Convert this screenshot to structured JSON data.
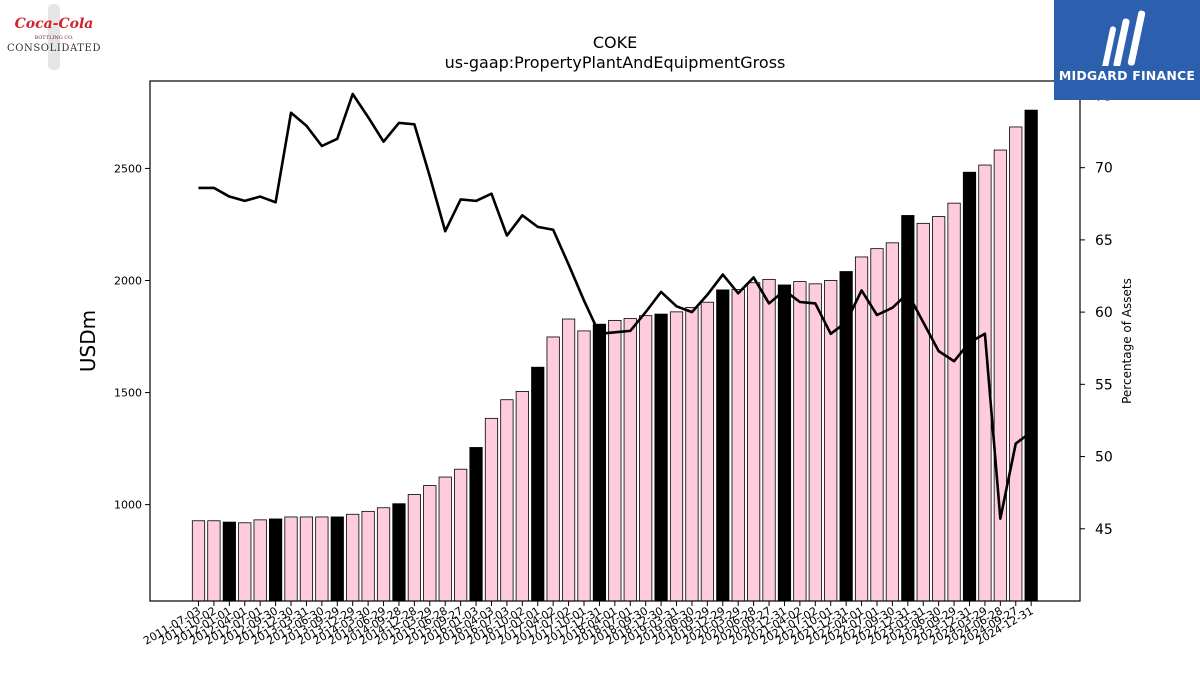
{
  "header": {
    "ticker": "COKE",
    "metric": "us-gaap:PropertyPlantAndEquipmentGross"
  },
  "logos": {
    "left": {
      "line1": "Coca-Cola",
      "line2": "BOTTLING CO.",
      "line3": "CONSOLIDATED"
    },
    "right": {
      "text": "MIDGARD FINANCE",
      "color": "#2c5fae"
    }
  },
  "chart_data": {
    "type": "bar",
    "title": "COKE",
    "subtitle": "us-gaap:PropertyPlantAndEquipmentGross",
    "ylabel": "USDm",
    "y2label": "Percentage of Assets",
    "ylim": [
      570,
      2890
    ],
    "y2lim": [
      40,
      76
    ],
    "yticks": [
      1000,
      1500,
      2000,
      2500
    ],
    "y2ticks": [
      45,
      50,
      55,
      60,
      65,
      70,
      75
    ],
    "colors": {
      "bar": "#ffccdd",
      "bar_highlight": "#000000",
      "line": "#000000"
    },
    "categories": [
      "2011-07-03",
      "2011-10-02",
      "2012-01-01",
      "2012-04-01",
      "2012-07-01",
      "2012-09-30",
      "2012-12-30",
      "2013-03-31",
      "2013-06-30",
      "2013-09-29",
      "2013-12-29",
      "2014-03-30",
      "2014-06-29",
      "2014-09-28",
      "2014-12-28",
      "2015-03-29",
      "2015-06-28",
      "2015-09-27",
      "2016-01-03",
      "2016-04-03",
      "2016-07-03",
      "2016-10-02",
      "2017-01-01",
      "2017-04-02",
      "2017-07-02",
      "2017-10-01",
      "2017-12-31",
      "2018-04-01",
      "2018-07-01",
      "2018-09-30",
      "2018-12-30",
      "2019-03-31",
      "2019-06-30",
      "2019-09-29",
      "2019-12-29",
      "2020-03-29",
      "2020-06-28",
      "2020-09-27",
      "2020-12-31",
      "2021-04-02",
      "2021-07-02",
      "2021-10-01",
      "2021-12-31",
      "2022-04-01",
      "2022-07-01",
      "2022-09-30",
      "2022-12-31",
      "2023-03-31",
      "2023-06-30",
      "2023-09-29",
      "2023-12-31",
      "2024-03-29",
      "2024-06-28",
      "2024-09-27",
      "2024-12-31"
    ],
    "series": [
      {
        "kind": "bar",
        "values": [
          928,
          928,
          922,
          919,
          932,
          936,
          945,
          945,
          945,
          945,
          957,
          970,
          986,
          1004,
          1045,
          1085,
          1123,
          1158,
          1255,
          1385,
          1468,
          1505,
          1613,
          1748,
          1828,
          1775,
          1805,
          1822,
          1830,
          1843,
          1850,
          1860,
          1880,
          1903,
          1958,
          1960,
          1990,
          2005,
          1980,
          1995,
          1985,
          2000,
          2040,
          2105,
          2142,
          2168,
          2290,
          2255,
          2285,
          2345,
          2483,
          2515,
          2582,
          2685,
          2760
        ],
        "highlight": [
          false,
          false,
          true,
          false,
          false,
          true,
          false,
          false,
          false,
          true,
          false,
          false,
          false,
          true,
          false,
          false,
          false,
          false,
          true,
          false,
          false,
          false,
          true,
          false,
          false,
          false,
          true,
          false,
          false,
          false,
          true,
          false,
          false,
          false,
          true,
          false,
          false,
          false,
          true,
          false,
          false,
          false,
          true,
          false,
          false,
          false,
          true,
          false,
          false,
          false,
          true,
          false,
          false,
          false,
          true
        ]
      },
      {
        "kind": "line",
        "axis": "right",
        "values": [
          68.6,
          68.6,
          68.0,
          67.7,
          68.0,
          67.6,
          73.8,
          72.9,
          71.5,
          72.0,
          75.1,
          73.5,
          71.8,
          73.1,
          73.0,
          69.4,
          65.6,
          67.8,
          67.7,
          68.2,
          65.3,
          66.7,
          65.9,
          65.7,
          63.3,
          60.8,
          58.5,
          58.6,
          58.7,
          60.0,
          61.4,
          60.4,
          60.0,
          61.2,
          62.6,
          61.3,
          62.4,
          60.6,
          61.5,
          60.7,
          60.6,
          58.5,
          59.3,
          61.5,
          59.8,
          60.3,
          61.3,
          59.3,
          57.3,
          56.6,
          57.9,
          58.5,
          45.7,
          50.9,
          51.7
        ]
      }
    ]
  }
}
